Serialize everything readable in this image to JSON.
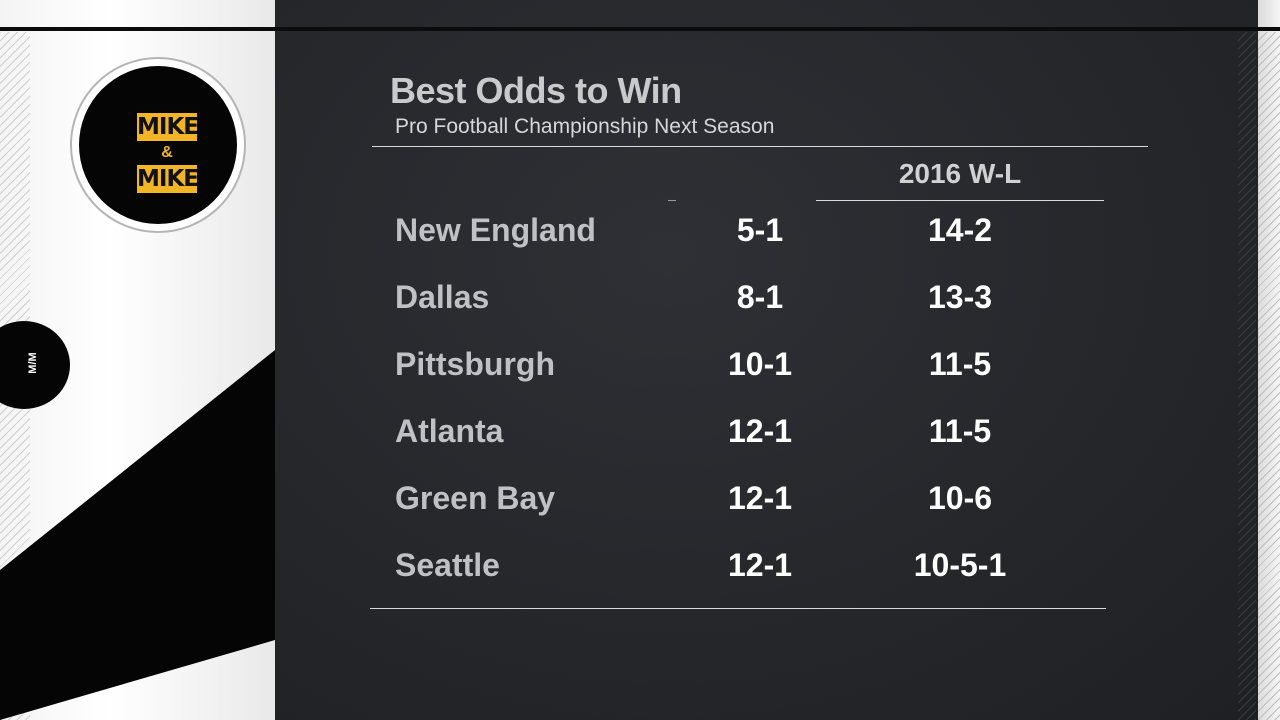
{
  "logo": {
    "word_top": "MIKE",
    "ampersand": "&",
    "word_bottom": "MIKE"
  },
  "badge": {
    "text": "M/M"
  },
  "graphic": {
    "title": "Best Odds to Win",
    "subtitle": "Pro Football Championship Next Season",
    "column_header": "2016 W-L",
    "rows": [
      {
        "team": "New England",
        "odds": "5-1",
        "record": "14-2"
      },
      {
        "team": "Dallas",
        "odds": "8-1",
        "record": "13-3"
      },
      {
        "team": "Pittsburgh",
        "odds": "10-1",
        "record": "11-5"
      },
      {
        "team": "Atlanta",
        "odds": "12-1",
        "record": "11-5"
      },
      {
        "team": "Green Bay",
        "odds": "12-1",
        "record": "10-6"
      },
      {
        "team": "Seattle",
        "odds": "12-1",
        "record": "10-5-1"
      }
    ]
  },
  "colors": {
    "brand_yellow": "#f2b526",
    "board": "#26282c"
  }
}
